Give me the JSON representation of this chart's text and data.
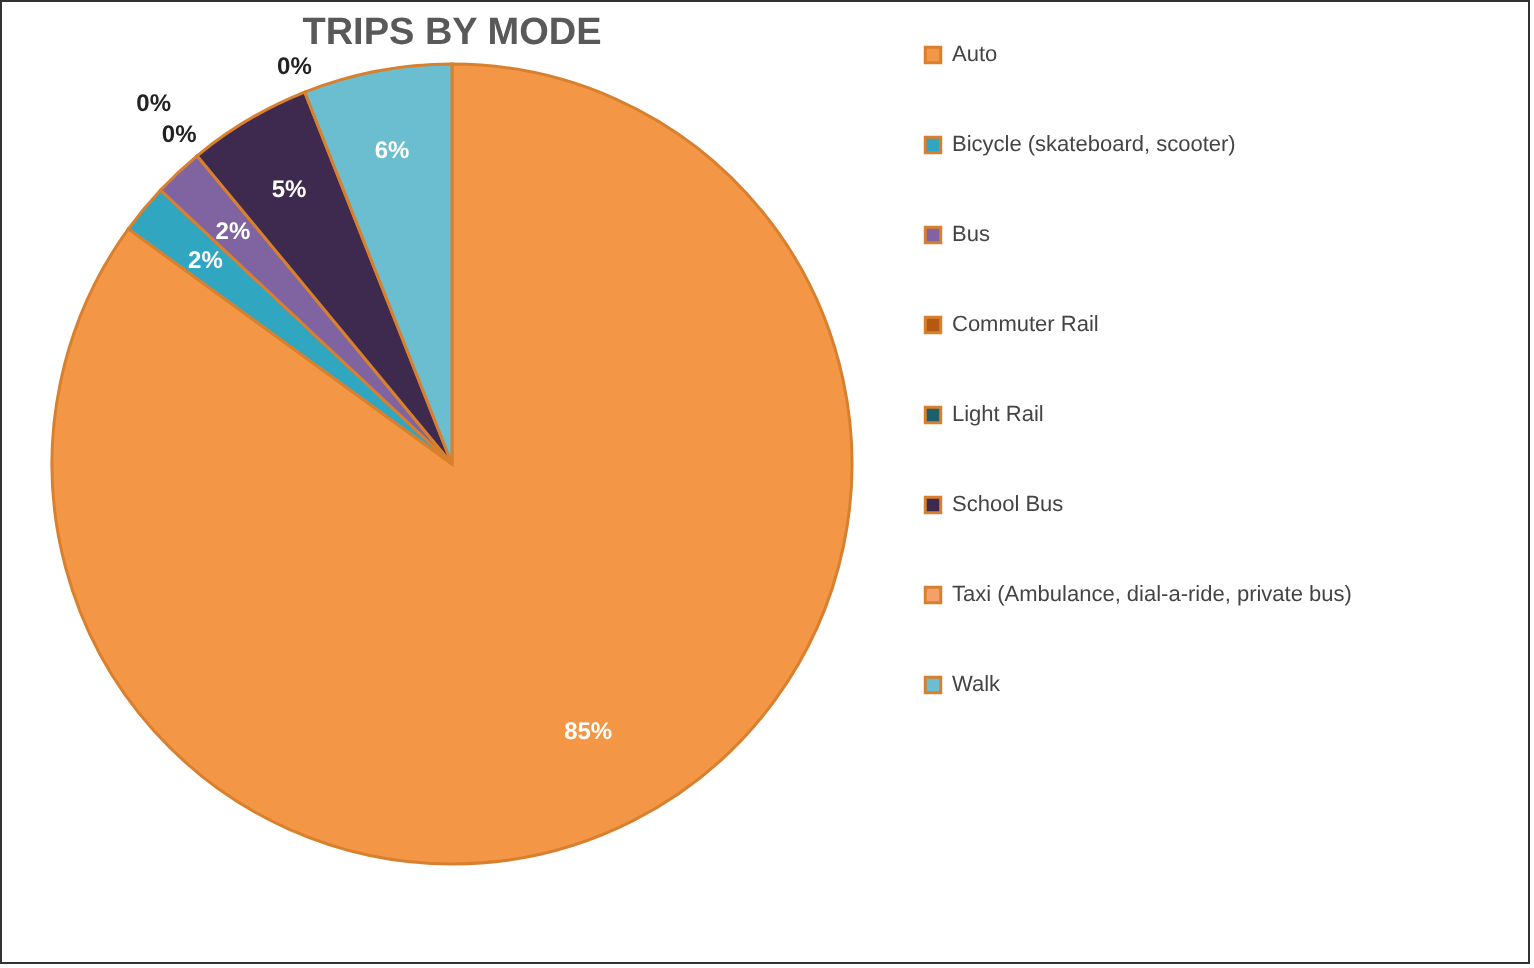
{
  "chart_data": {
    "type": "pie",
    "title": "TRIPS BY MODE",
    "categories": [
      "Auto",
      "Bicycle (skateboard, scooter)",
      "Bus",
      "Commuter Rail",
      "Light Rail",
      "School Bus",
      "Taxi (Ambulance, dial-a-ride, private bus)",
      "Walk"
    ],
    "values": [
      85,
      2,
      2,
      0,
      0,
      5,
      0,
      6
    ],
    "value_labels": [
      "85%",
      "2%",
      "2%",
      "0%",
      "0%",
      "5%",
      "0%",
      "6%"
    ],
    "colors": [
      "#f39646",
      "#31a6c1",
      "#8064a2",
      "#b35a10",
      "#1f5f6b",
      "#3f2a4f",
      "#f4a06b",
      "#6abed0"
    ],
    "legend": "right"
  }
}
